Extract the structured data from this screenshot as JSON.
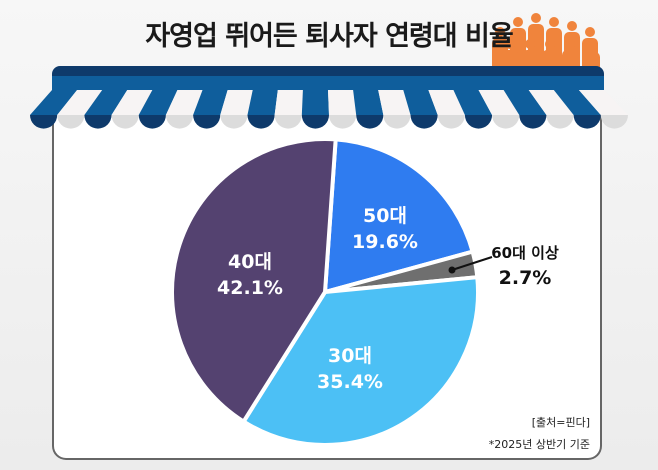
{
  "title": "자영업 뛰어든 퇴사자 연령대 비율",
  "source": "[출처=핀다]",
  "note": "*2025년 상반기 기준",
  "colors": {
    "awning_dark": "#0e3a6b",
    "awning_blue": "#0f5e9c",
    "people": "#f0843c"
  },
  "chart_data": {
    "type": "pie",
    "title": "자영업 뛰어든 퇴사자 연령대 비율",
    "categories": [
      "50대",
      "60대 이상",
      "30대",
      "40대"
    ],
    "values": [
      19.6,
      2.7,
      35.4,
      42.1
    ],
    "labels": [
      "19.6%",
      "2.7%",
      "35.4%",
      "42.1%"
    ],
    "colors": [
      "#2f7cf0",
      "#6f6f6f",
      "#4cc0f5",
      "#544270"
    ]
  }
}
